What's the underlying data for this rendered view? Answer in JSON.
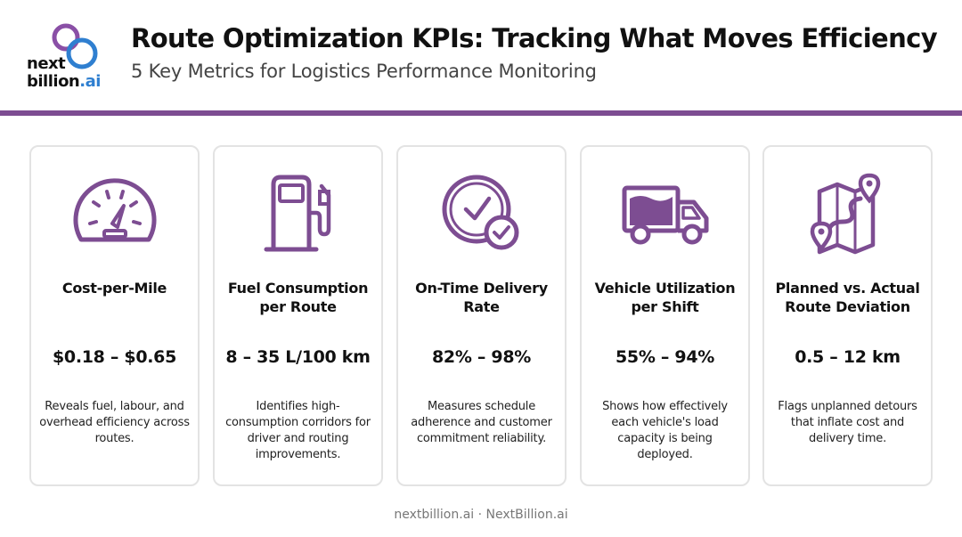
{
  "brand": {
    "logo_line1": "next",
    "logo_line2": "billion",
    "logo_suffix": ".ai",
    "accent": "#7d4d92",
    "logo_blue": "#2f7fd0"
  },
  "header": {
    "title": "Route Optimization KPIs: Tracking What Moves Efficiency",
    "subtitle": "5 Key Metrics for Logistics Performance Monitoring"
  },
  "cards": [
    {
      "icon": "speedometer-icon",
      "name": "Cost-per-Mile",
      "range": "$0.18 – $0.65",
      "desc": "Reveals fuel, labour, and overhead efficiency across routes."
    },
    {
      "icon": "fuel-pump-icon",
      "name": "Fuel Consumption per Route",
      "range": "8 – 35 L/100 km",
      "desc": "Identifies high-consumption corridors for driver and routing improvements."
    },
    {
      "icon": "clock-check-icon",
      "name": "On-Time Delivery Rate",
      "range": "82% – 98%",
      "desc": "Measures schedule adherence and customer commitment reliability."
    },
    {
      "icon": "delivery-truck-icon",
      "name": "Vehicle Utilization per Shift",
      "range": "55% – 94%",
      "desc": "Shows how effectively each vehicle's load capacity is being deployed."
    },
    {
      "icon": "route-map-icon",
      "name": "Planned vs. Actual Route Deviation",
      "range": "0.5 – 12 km",
      "desc": "Flags unplanned detours that inflate cost and delivery time."
    }
  ],
  "footer": {
    "text": "nextbillion.ai · NextBillion.ai"
  }
}
